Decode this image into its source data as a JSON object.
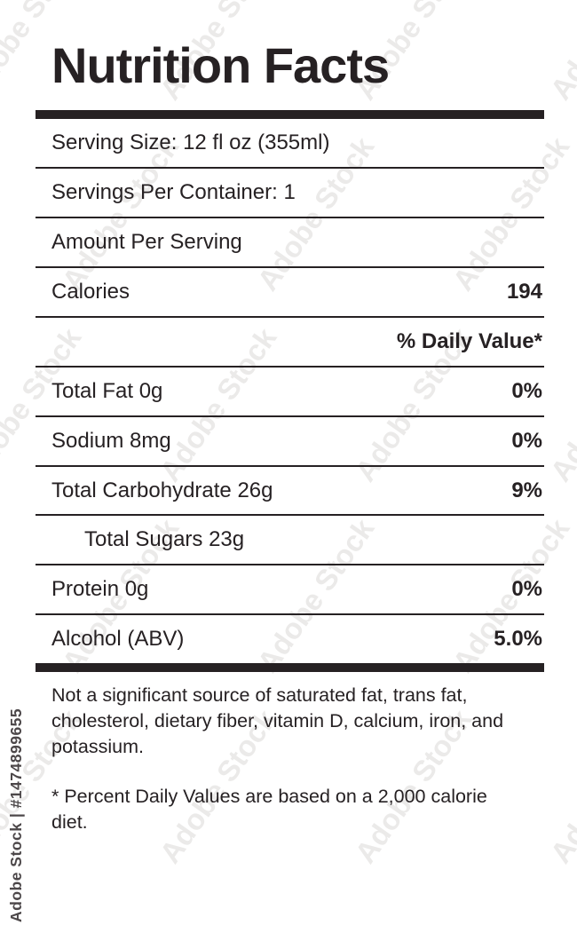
{
  "watermark": {
    "diagonal_text": "Adobe Stock",
    "side_text": "Adobe Stock | #1474899655"
  },
  "label": {
    "title": "Nutrition Facts",
    "serving_size": "Serving Size: 12 fl oz (355ml)",
    "servings_per_container": "Servings Per Container: 1",
    "amount_per_serving": "Amount Per Serving",
    "calories_label": "Calories",
    "calories_value": "194",
    "daily_value_header": "% Daily Value*",
    "rows": [
      {
        "name": "Total Fat 0g",
        "value": "0%"
      },
      {
        "name": "Sodium 8mg",
        "value": "0%"
      },
      {
        "name": "Total Carbohydrate 26g",
        "value": "9%"
      },
      {
        "name": "Total Sugars 23g",
        "value": ""
      },
      {
        "name": "Protein 0g",
        "value": "0%"
      },
      {
        "name": "Alcohol (ABV)",
        "value": "5.0%"
      }
    ],
    "footnote_sources": "Not a significant source of saturated fat, trans fat, cholesterol, dietary fiber, vitamin D, calcium, iron, and potassium.",
    "footnote_daily_values": "* Percent Daily Values are based on a 2,000 calorie diet."
  },
  "colors": {
    "text": "#262123",
    "watermark_gray": "#7a706c"
  }
}
